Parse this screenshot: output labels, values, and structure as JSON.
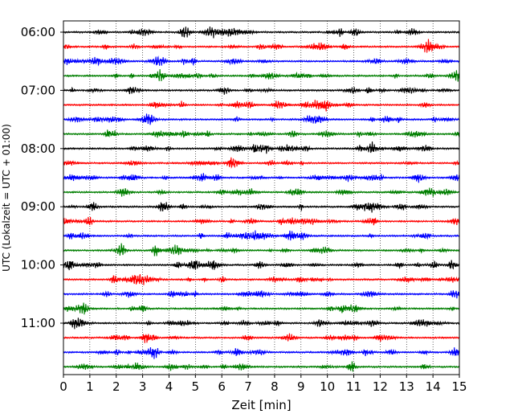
{
  "chart_data": {
    "type": "line",
    "title": "",
    "xlabel": "Zeit  [min]",
    "ylabel": "UTC (Lokalzeit = UTC + 01:00)",
    "xlim": [
      0,
      15
    ],
    "x_ticks": [
      0,
      1,
      2,
      3,
      4,
      5,
      6,
      7,
      8,
      9,
      10,
      11,
      12,
      13,
      14,
      15
    ],
    "y_tick_labels": [
      "06:00",
      "07:00",
      "08:00",
      "09:00",
      "10:00",
      "11:00"
    ],
    "grid": "vertical dotted lines at each minute",
    "legend": "none",
    "trace_minutes_per_line": 15,
    "trace_colors": [
      "#000000",
      "#ff0000",
      "#0000ff",
      "#007f00"
    ],
    "traces": [
      {
        "start": "06:00",
        "color": "#000000"
      },
      {
        "start": "06:15",
        "color": "#ff0000"
      },
      {
        "start": "06:30",
        "color": "#0000ff"
      },
      {
        "start": "06:45",
        "color": "#007f00"
      },
      {
        "start": "07:00",
        "color": "#000000"
      },
      {
        "start": "07:15",
        "color": "#ff0000"
      },
      {
        "start": "07:30",
        "color": "#0000ff"
      },
      {
        "start": "07:45",
        "color": "#007f00"
      },
      {
        "start": "08:00",
        "color": "#000000"
      },
      {
        "start": "08:15",
        "color": "#ff0000"
      },
      {
        "start": "08:30",
        "color": "#0000ff"
      },
      {
        "start": "08:45",
        "color": "#007f00"
      },
      {
        "start": "09:00",
        "color": "#000000"
      },
      {
        "start": "09:15",
        "color": "#ff0000"
      },
      {
        "start": "09:30",
        "color": "#0000ff"
      },
      {
        "start": "09:45",
        "color": "#007f00"
      },
      {
        "start": "10:00",
        "color": "#000000"
      },
      {
        "start": "10:15",
        "color": "#ff0000"
      },
      {
        "start": "10:30",
        "color": "#0000ff"
      },
      {
        "start": "10:45",
        "color": "#007f00"
      },
      {
        "start": "11:00",
        "color": "#000000"
      },
      {
        "start": "11:15",
        "color": "#ff0000"
      },
      {
        "start": "11:30",
        "color": "#0000ff"
      },
      {
        "start": "11:45",
        "color": "#007f00"
      }
    ]
  }
}
